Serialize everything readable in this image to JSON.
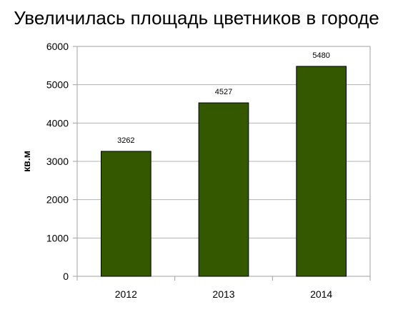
{
  "chart_data": {
    "type": "bar",
    "title": "Увеличилась площадь цветников в городе",
    "xlabel": "",
    "ylabel": "кв.м",
    "categories": [
      "2012",
      "2013",
      "2014"
    ],
    "values": [
      3262,
      4527,
      5480
    ],
    "data_labels": [
      "3262",
      "4527",
      "5480"
    ],
    "ylim": [
      0,
      6000
    ],
    "yticks": [
      "0",
      "1000",
      "2000",
      "3000",
      "4000",
      "5000",
      "6000"
    ],
    "grid": true,
    "legend": "none",
    "bar_color": "#335800"
  }
}
